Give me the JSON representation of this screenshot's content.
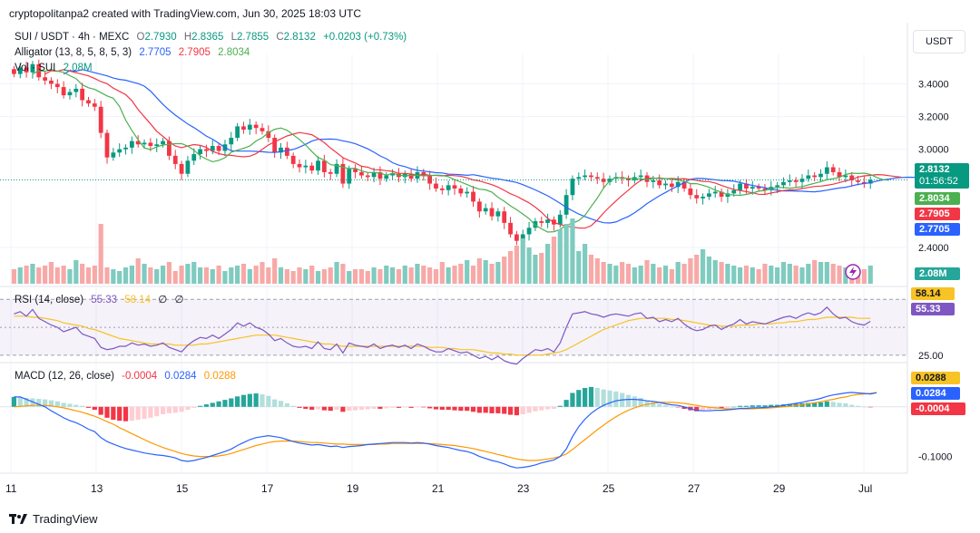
{
  "header": {
    "credit": "cryptopolitanpa2 created with TradingView.com, Jun 30, 2025 18:03 UTC",
    "currency_button": "USDT"
  },
  "legend": {
    "symbol": "SUI / USDT · 4h · MEXC",
    "ohlc": {
      "o_label": "O",
      "o": "2.7930",
      "h_label": "H",
      "h": "2.8365",
      "l_label": "L",
      "l": "2.7855",
      "c_label": "C",
      "c": "2.8132",
      "change": "+0.0203 (+0.73%)"
    },
    "alligator": {
      "label": "Alligator (13, 8, 5, 8, 5, 3)",
      "jaw": "2.7705",
      "teeth": "2.7905",
      "lips": "2.8034"
    },
    "volume": {
      "label": "Vol · SUI",
      "value": "2.08M"
    }
  },
  "badges": {
    "price": "2.8132",
    "countdown": "01:56:52",
    "lips": "2.8034",
    "teeth": "2.7905",
    "jaw": "2.7705",
    "vol": "2.08M",
    "rsi_ma": "58.14",
    "rsi": "55.33",
    "macd_signal": "0.0288",
    "macd": "0.0284",
    "hist": "-0.0004"
  },
  "rsi_legend": {
    "label": "RSI (14, close)",
    "rsi": "55.33",
    "ma": "58.14",
    "v1": "∅",
    "v2": "∅"
  },
  "macd_legend": {
    "label": "MACD (12, 26, close)",
    "hist": "-0.0004",
    "macd": "0.0284",
    "signal": "0.0288"
  },
  "footer": {
    "brand": "TradingView"
  },
  "colors": {
    "up": "#089981",
    "down": "#f23645",
    "jaw": "#2962ff",
    "teeth": "#f23645",
    "lips": "#4caf50",
    "rsi": "#7e57c2",
    "rsi_ma": "#f7c325",
    "macd": "#2962ff",
    "signal": "#ff9800"
  },
  "chart_data": [
    {
      "type": "candlestick",
      "title": "SUI / USDT · 4h · MEXC",
      "x_tick_labels": [
        "11",
        "13",
        "15",
        "17",
        "19",
        "21",
        "23",
        "25",
        "27",
        "29",
        "Jul"
      ],
      "y_tick_labels": [
        "2.4000",
        "3.0000",
        "3.2000",
        "3.4000"
      ],
      "ylim": [
        2.3,
        3.6
      ],
      "closes": [
        3.46,
        3.5,
        3.47,
        3.52,
        3.44,
        3.42,
        3.4,
        3.38,
        3.33,
        3.35,
        3.37,
        3.3,
        3.28,
        3.26,
        3.1,
        2.95,
        2.98,
        3.0,
        3.01,
        3.05,
        3.03,
        3.04,
        3.02,
        3.03,
        3.05,
        2.96,
        2.91,
        2.85,
        2.93,
        2.97,
        3.0,
        2.99,
        3.02,
        2.99,
        3.03,
        3.07,
        3.14,
        3.12,
        3.15,
        3.13,
        3.11,
        3.07,
        2.98,
        3.01,
        2.96,
        2.91,
        2.89,
        2.9,
        2.87,
        2.93,
        2.86,
        2.85,
        2.91,
        2.79,
        2.88,
        2.86,
        2.84,
        2.83,
        2.86,
        2.82,
        2.84,
        2.85,
        2.83,
        2.85,
        2.82,
        2.86,
        2.84,
        2.79,
        2.76,
        2.75,
        2.78,
        2.76,
        2.73,
        2.74,
        2.68,
        2.62,
        2.64,
        2.59,
        2.62,
        2.55,
        2.48,
        2.44,
        2.48,
        2.52,
        2.56,
        2.55,
        2.57,
        2.54,
        2.6,
        2.72,
        2.82,
        2.83,
        2.84,
        2.83,
        2.82,
        2.8,
        2.82,
        2.83,
        2.82,
        2.81,
        2.83,
        2.84,
        2.8,
        2.81,
        2.78,
        2.79,
        2.77,
        2.8,
        2.76,
        2.72,
        2.7,
        2.71,
        2.73,
        2.74,
        2.71,
        2.73,
        2.75,
        2.79,
        2.76,
        2.77,
        2.76,
        2.75,
        2.77,
        2.78,
        2.8,
        2.81,
        2.8,
        2.82,
        2.84,
        2.83,
        2.85,
        2.89,
        2.86,
        2.83,
        2.84,
        2.81,
        2.8,
        2.79,
        2.8132
      ],
      "opens_note": "opens equal previous close",
      "series": [
        {
          "name": "Alligator jaw",
          "last": 2.7705
        },
        {
          "name": "Alligator teeth",
          "last": 2.7905
        },
        {
          "name": "Alligator lips",
          "last": 2.8034
        }
      ]
    },
    {
      "type": "bar",
      "title": "Vol · SUI",
      "last": "2.08M",
      "values": [
        8,
        9,
        10,
        11,
        9,
        10,
        12,
        9,
        10,
        8,
        13,
        11,
        9,
        10,
        33,
        9,
        8,
        7,
        9,
        10,
        14,
        11,
        9,
        8,
        10,
        12,
        7,
        10,
        11,
        12,
        9,
        9,
        8,
        10,
        7,
        9,
        10,
        11,
        8,
        10,
        12,
        9,
        14,
        9,
        8,
        7,
        9,
        8,
        10,
        7,
        8,
        9,
        12,
        11,
        7,
        8,
        8,
        7,
        9,
        8,
        10,
        9,
        8,
        10,
        9,
        11,
        10,
        9,
        8,
        12,
        9,
        10,
        11,
        13,
        10,
        14,
        13,
        11,
        12,
        15,
        18,
        21,
        25,
        20,
        16,
        17,
        22,
        26,
        30,
        33,
        36,
        18,
        22,
        16,
        14,
        12,
        11,
        10,
        12,
        11,
        9,
        10,
        13,
        11,
        9,
        10,
        8,
        12,
        11,
        14,
        16,
        19,
        15,
        13,
        12,
        11,
        10,
        9,
        10,
        9,
        8,
        11,
        10,
        9,
        12,
        11,
        10,
        9,
        11,
        13,
        12,
        12,
        11,
        10,
        9,
        7,
        6,
        8,
        10
      ]
    },
    {
      "type": "line",
      "title": "RSI (14, close)",
      "y_tick_labels": [
        "25.00"
      ],
      "ylim": [
        20,
        85
      ],
      "series": [
        {
          "name": "RSI",
          "last": 55.33
        },
        {
          "name": "RSI-based MA",
          "last": 58.14
        }
      ],
      "rsi": [
        62,
        64,
        60,
        66,
        58,
        55,
        52,
        50,
        46,
        48,
        50,
        44,
        42,
        40,
        32,
        30,
        31,
        33,
        33,
        36,
        34,
        35,
        33,
        34,
        36,
        32,
        30,
        28,
        34,
        38,
        41,
        40,
        43,
        40,
        44,
        48,
        54,
        51,
        54,
        50,
        48,
        44,
        38,
        40,
        36,
        33,
        32,
        33,
        31,
        37,
        31,
        30,
        35,
        27,
        36,
        34,
        33,
        32,
        35,
        31,
        33,
        34,
        32,
        34,
        31,
        35,
        33,
        30,
        28,
        28,
        31,
        29,
        27,
        28,
        25,
        22,
        24,
        21,
        24,
        20,
        18,
        17,
        22,
        26,
        30,
        29,
        31,
        28,
        36,
        50,
        62,
        63,
        64,
        62,
        61,
        59,
        61,
        62,
        61,
        60,
        62,
        63,
        58,
        59,
        55,
        57,
        55,
        58,
        53,
        49,
        47,
        48,
        51,
        52,
        48,
        51,
        53,
        57,
        53,
        55,
        54,
        53,
        55,
        57,
        59,
        60,
        58,
        61,
        63,
        61,
        63,
        68,
        62,
        58,
        59,
        55,
        53,
        52,
        55.33
      ],
      "ma": [
        60,
        60,
        60,
        59,
        59,
        58,
        57,
        56,
        54,
        53,
        52,
        51,
        49,
        48,
        46,
        44,
        42,
        40,
        39,
        38,
        37,
        36,
        35,
        35,
        35,
        35,
        34,
        34,
        34,
        34,
        35,
        35,
        36,
        37,
        38,
        39,
        40,
        41,
        42,
        43,
        43,
        43,
        43,
        42,
        41,
        40,
        39,
        38,
        37,
        36,
        35,
        35,
        34,
        33,
        33,
        33,
        33,
        33,
        33,
        33,
        33,
        33,
        33,
        33,
        33,
        33,
        33,
        32,
        32,
        32,
        31,
        31,
        30,
        30,
        30,
        29,
        28,
        27,
        27,
        26,
        26,
        25,
        25,
        25,
        25,
        25,
        26,
        27,
        28,
        30,
        33,
        36,
        39,
        42,
        45,
        48,
        50,
        52,
        54,
        56,
        57,
        58,
        58,
        58,
        58,
        58,
        57,
        57,
        56,
        55,
        54,
        53,
        52,
        52,
        51,
        51,
        51,
        52,
        52,
        52,
        53,
        53,
        53,
        54,
        54,
        55,
        55,
        56,
        57,
        57,
        58,
        59,
        59,
        59,
        59,
        59,
        58,
        58,
        58.14
      ]
    },
    {
      "type": "bar",
      "title": "MACD (12, 26, close)",
      "y_tick_labels": [
        "-0.1000"
      ],
      "ylim": [
        -0.13,
        0.08
      ],
      "series": [
        {
          "name": "Histogram",
          "last": -0.0004
        },
        {
          "name": "MACD",
          "last": 0.0284
        },
        {
          "name": "Signal",
          "last": 0.0288
        }
      ],
      "hist": [
        0.02,
        0.019,
        0.018,
        0.017,
        0.016,
        0.015,
        0.013,
        0.011,
        0.008,
        0.006,
        0.004,
        0.002,
        -0.002,
        -0.006,
        -0.016,
        -0.022,
        -0.026,
        -0.028,
        -0.029,
        -0.028,
        -0.026,
        -0.024,
        -0.022,
        -0.019,
        -0.015,
        -0.013,
        -0.012,
        -0.01,
        -0.006,
        -0.002,
        0.002,
        0.005,
        0.008,
        0.011,
        0.014,
        0.017,
        0.021,
        0.024,
        0.026,
        0.027,
        0.025,
        0.022,
        0.015,
        0.012,
        0.007,
        0.002,
        -0.002,
        -0.004,
        -0.006,
        -0.005,
        -0.007,
        -0.008,
        -0.006,
        -0.01,
        -0.008,
        -0.007,
        -0.006,
        -0.005,
        -0.004,
        -0.004,
        -0.003,
        -0.002,
        -0.002,
        -0.001,
        -0.002,
        -0.001,
        -0.001,
        -0.003,
        -0.005,
        -0.006,
        -0.006,
        -0.007,
        -0.008,
        -0.008,
        -0.01,
        -0.012,
        -0.012,
        -0.013,
        -0.013,
        -0.014,
        -0.016,
        -0.017,
        -0.015,
        -0.012,
        -0.009,
        -0.007,
        -0.005,
        -0.004,
        0.002,
        0.014,
        0.028,
        0.034,
        0.038,
        0.04,
        0.038,
        0.035,
        0.033,
        0.031,
        0.028,
        0.024,
        0.021,
        0.018,
        0.013,
        0.01,
        0.006,
        0.003,
        0.0,
        -0.001,
        -0.004,
        -0.007,
        -0.009,
        -0.008,
        -0.006,
        -0.004,
        -0.004,
        -0.002,
        0.0,
        0.002,
        0.002,
        0.003,
        0.003,
        0.003,
        0.004,
        0.004,
        0.005,
        0.006,
        0.006,
        0.007,
        0.008,
        0.008,
        0.009,
        0.011,
        0.01,
        0.008,
        0.007,
        0.004,
        0.002,
        0.0,
        -0.0004
      ],
      "macd": [
        0.02,
        0.02,
        0.015,
        0.01,
        0.005,
        0.0,
        -0.008,
        -0.015,
        -0.022,
        -0.028,
        -0.032,
        -0.038,
        -0.045,
        -0.05,
        -0.062,
        -0.07,
        -0.075,
        -0.08,
        -0.084,
        -0.087,
        -0.09,
        -0.093,
        -0.095,
        -0.097,
        -0.098,
        -0.1,
        -0.103,
        -0.108,
        -0.11,
        -0.108,
        -0.105,
        -0.102,
        -0.098,
        -0.094,
        -0.09,
        -0.085,
        -0.078,
        -0.072,
        -0.066,
        -0.062,
        -0.06,
        -0.058,
        -0.06,
        -0.062,
        -0.066,
        -0.07,
        -0.073,
        -0.075,
        -0.077,
        -0.076,
        -0.078,
        -0.08,
        -0.079,
        -0.082,
        -0.08,
        -0.079,
        -0.078,
        -0.076,
        -0.075,
        -0.074,
        -0.073,
        -0.072,
        -0.072,
        -0.072,
        -0.073,
        -0.072,
        -0.073,
        -0.075,
        -0.078,
        -0.08,
        -0.082,
        -0.085,
        -0.088,
        -0.09,
        -0.094,
        -0.1,
        -0.104,
        -0.108,
        -0.111,
        -0.115,
        -0.12,
        -0.123,
        -0.122,
        -0.12,
        -0.117,
        -0.113,
        -0.11,
        -0.107,
        -0.1,
        -0.085,
        -0.06,
        -0.04,
        -0.025,
        -0.013,
        -0.004,
        0.003,
        0.008,
        0.012,
        0.014,
        0.015,
        0.015,
        0.014,
        0.012,
        0.011,
        0.009,
        0.006,
        0.004,
        0.003,
        0.0,
        -0.004,
        -0.007,
        -0.008,
        -0.008,
        -0.007,
        -0.007,
        -0.006,
        -0.005,
        -0.003,
        -0.003,
        -0.002,
        -0.002,
        -0.001,
        0.0,
        0.001,
        0.003,
        0.005,
        0.007,
        0.009,
        0.012,
        0.014,
        0.017,
        0.021,
        0.024,
        0.026,
        0.028,
        0.029,
        0.028,
        0.027,
        0.026,
        0.0284
      ],
      "signal": [
        0.0,
        0.001,
        0.002,
        0.003,
        0.003,
        0.003,
        0.002,
        0.0,
        -0.002,
        -0.005,
        -0.008,
        -0.011,
        -0.015,
        -0.019,
        -0.024,
        -0.03,
        -0.035,
        -0.042,
        -0.048,
        -0.054,
        -0.06,
        -0.066,
        -0.072,
        -0.077,
        -0.082,
        -0.086,
        -0.09,
        -0.094,
        -0.097,
        -0.099,
        -0.1,
        -0.1,
        -0.1,
        -0.099,
        -0.097,
        -0.094,
        -0.09,
        -0.086,
        -0.082,
        -0.078,
        -0.075,
        -0.072,
        -0.07,
        -0.069,
        -0.069,
        -0.069,
        -0.07,
        -0.071,
        -0.072,
        -0.072,
        -0.073,
        -0.074,
        -0.075,
        -0.075,
        -0.076,
        -0.076,
        -0.076,
        -0.076,
        -0.076,
        -0.075,
        -0.075,
        -0.074,
        -0.074,
        -0.074,
        -0.074,
        -0.074,
        -0.074,
        -0.074,
        -0.075,
        -0.076,
        -0.077,
        -0.078,
        -0.08,
        -0.082,
        -0.084,
        -0.087,
        -0.09,
        -0.093,
        -0.096,
        -0.099,
        -0.102,
        -0.105,
        -0.107,
        -0.108,
        -0.108,
        -0.107,
        -0.105,
        -0.103,
        -0.1,
        -0.095,
        -0.086,
        -0.076,
        -0.066,
        -0.056,
        -0.046,
        -0.037,
        -0.028,
        -0.02,
        -0.013,
        -0.007,
        -0.002,
        0.002,
        0.005,
        0.007,
        0.009,
        0.009,
        0.009,
        0.008,
        0.007,
        0.005,
        0.003,
        0.001,
        -0.001,
        -0.002,
        -0.003,
        -0.004,
        -0.004,
        -0.004,
        -0.004,
        -0.004,
        -0.003,
        -0.003,
        -0.002,
        -0.001,
        0.0,
        0.001,
        0.003,
        0.004,
        0.006,
        0.008,
        0.01,
        0.013,
        0.015,
        0.018,
        0.02,
        0.023,
        0.025,
        0.026,
        0.027,
        0.0288
      ]
    }
  ]
}
